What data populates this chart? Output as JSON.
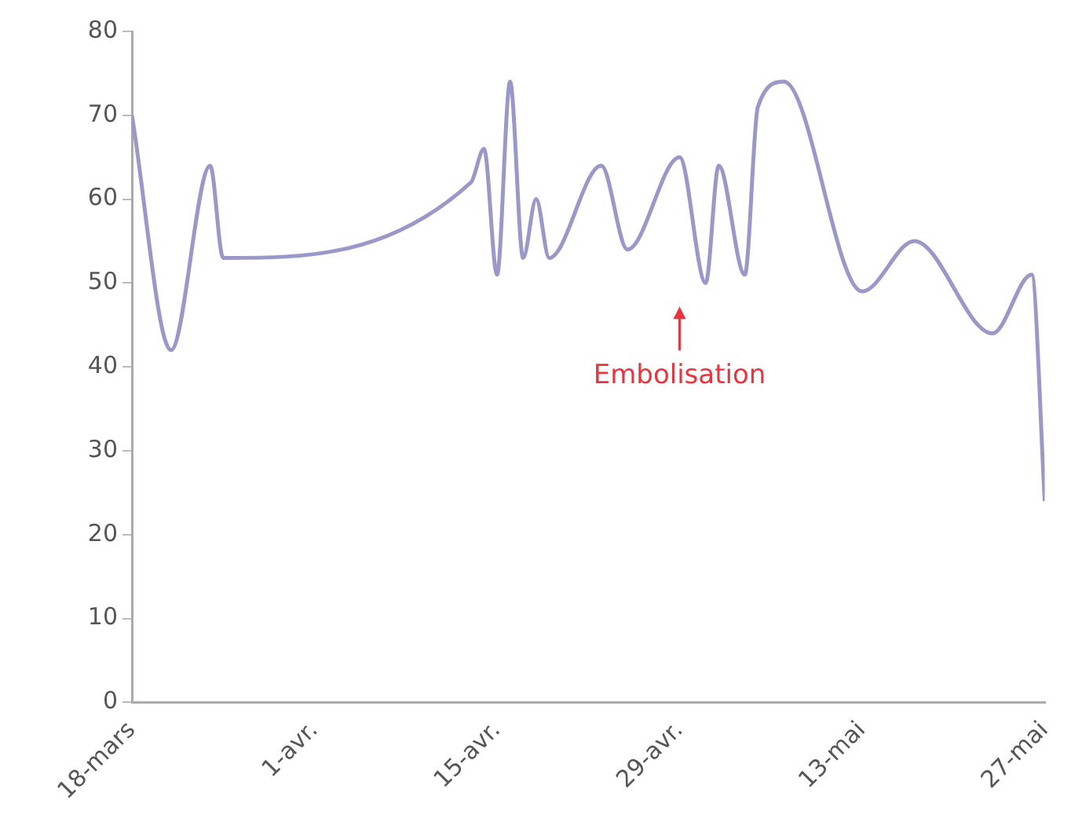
{
  "chart_data": {
    "type": "line",
    "x": [
      "--03-18",
      "--03-21",
      "--03-24",
      "--03-25",
      "--04-13",
      "--04-14",
      "--04-15",
      "--04-16",
      "--04-17",
      "--04-18",
      "--04-19",
      "--04-23",
      "--04-25",
      "--04-29",
      "--05-01",
      "--05-02",
      "--05-04",
      "--05-05",
      "--05-07",
      "--05-13",
      "--05-17",
      "--05-23",
      "--05-26",
      "--05-27"
    ],
    "series": [
      {
        "color": "#9a98c9",
        "values": [
          70,
          42,
          64,
          53,
          62,
          66,
          51,
          74,
          53,
          60,
          53,
          64,
          54,
          65,
          50,
          64,
          51,
          71,
          74,
          49,
          55,
          44,
          51,
          24
        ]
      }
    ],
    "xlim": [
      "--03-18",
      "--05-27"
    ],
    "xticks": [
      {
        "value": "--03-18",
        "label": "18-mars"
      },
      {
        "value": "--04-01",
        "label": "1-avr."
      },
      {
        "value": "--04-15",
        "label": "15-avr."
      },
      {
        "value": "--04-29",
        "label": "29-avr."
      },
      {
        "value": "--05-13",
        "label": "13-mai"
      },
      {
        "value": "--05-27",
        "label": "27-mai"
      }
    ],
    "ylim": [
      0,
      80
    ],
    "yticks": [
      0,
      10,
      20,
      30,
      40,
      50,
      60,
      70,
      80
    ],
    "grid": false,
    "marker": "none",
    "legend": false,
    "annotations": [
      "Embolisation"
    ]
  }
}
